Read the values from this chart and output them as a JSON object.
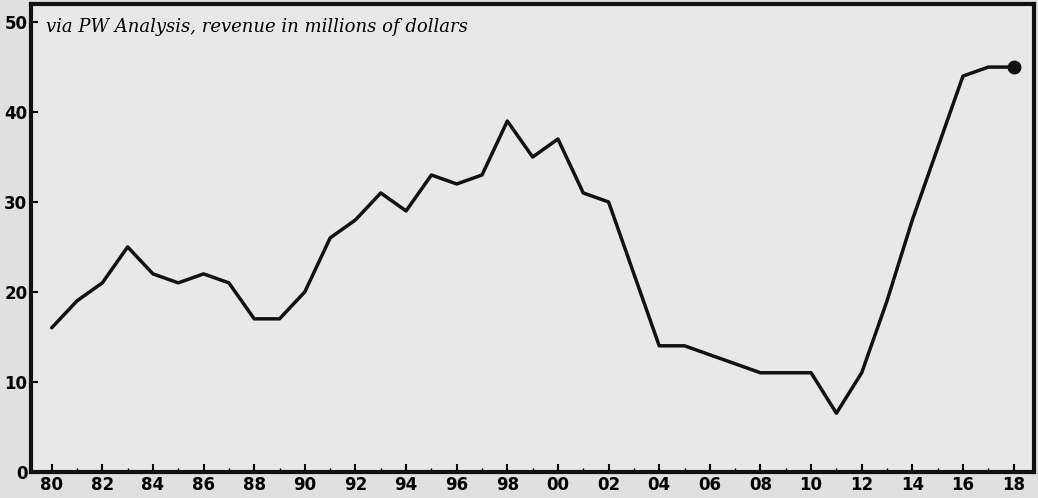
{
  "years": [
    1980,
    1981,
    1982,
    1983,
    1984,
    1985,
    1986,
    1987,
    1988,
    1989,
    1990,
    1991,
    1992,
    1993,
    1994,
    1995,
    1996,
    1997,
    1998,
    1999,
    2000,
    2001,
    2002,
    2003,
    2004,
    2005,
    2006,
    2007,
    2008,
    2009,
    2010,
    2011,
    2012,
    2013,
    2014,
    2015,
    2016,
    2017,
    2018
  ],
  "values": [
    16,
    19,
    21,
    25,
    22,
    21,
    22,
    21,
    17,
    17,
    20,
    26,
    28,
    31,
    29,
    33,
    32,
    33,
    39,
    35,
    37,
    31,
    30,
    22,
    14,
    14,
    13,
    12,
    11,
    11,
    11,
    6.5,
    11,
    19,
    28,
    36,
    44,
    45,
    45
  ],
  "annotation": "via PW Analysis, revenue in millions of dollars",
  "xtick_labels": [
    "80",
    "82",
    "84",
    "86",
    "88",
    "90",
    "92",
    "94",
    "96",
    "98",
    "00",
    "02",
    "04",
    "06",
    "08",
    "10",
    "12",
    "14",
    "16",
    "18"
  ],
  "xtick_positions": [
    1980,
    1982,
    1984,
    1986,
    1988,
    1990,
    1992,
    1994,
    1996,
    1998,
    2000,
    2002,
    2004,
    2006,
    2008,
    2010,
    2012,
    2014,
    2016,
    2018
  ],
  "ytick_labels": [
    "0",
    "10",
    "20",
    "30",
    "40",
    "50"
  ],
  "ytick_positions": [
    0,
    10,
    20,
    30,
    40,
    50
  ],
  "ylim": [
    0,
    52
  ],
  "xlim": [
    1979.2,
    2018.8
  ],
  "line_color": "#111111",
  "line_width": 2.5,
  "bg_color": "#e0e0e0",
  "plot_bg_color": "#e8e8e8",
  "marker_size": 9,
  "annotation_fontsize": 13,
  "border_color": "#111111",
  "border_linewidth": 3.0
}
